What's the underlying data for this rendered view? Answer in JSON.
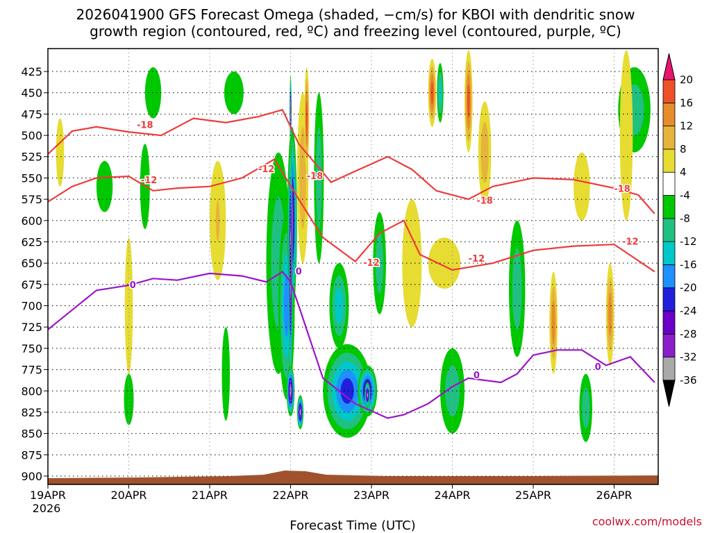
{
  "chart_data": {
    "type": "heatmap",
    "title_line1": "2026041900 GFS Forecast Omega (shaded, −cm/s) for KBOI with dendritic snow",
    "title_line2": "growth region (contoured, red, ºC) and freezing level (contoured, purple, ºC)",
    "xlabel": "Forecast Time (UTC)",
    "credit": "coolwx.com/models",
    "x_ticks": [
      {
        "label": "19APR",
        "sub": "2026",
        "day": 0
      },
      {
        "label": "20APR",
        "sub": "",
        "day": 1
      },
      {
        "label": "21APR",
        "sub": "",
        "day": 2
      },
      {
        "label": "22APR",
        "sub": "",
        "day": 3
      },
      {
        "label": "23APR",
        "sub": "",
        "day": 4
      },
      {
        "label": "24APR",
        "sub": "",
        "day": 5
      },
      {
        "label": "25APR",
        "sub": "",
        "day": 6
      },
      {
        "label": "26APR",
        "sub": "",
        "day": 7
      }
    ],
    "xlim_days": [
      0,
      7.5
    ],
    "y_ticks": [
      425,
      450,
      475,
      500,
      525,
      550,
      575,
      600,
      625,
      650,
      675,
      700,
      725,
      750,
      775,
      800,
      825,
      850,
      875,
      900
    ],
    "ylim_hpa": [
      400,
      905
    ],
    "colorbar": {
      "levels": [
        -36,
        -32,
        -28,
        -24,
        -20,
        -16,
        -12,
        -8,
        -4,
        4,
        8,
        12,
        16,
        20
      ],
      "colors": [
        "#000000",
        "#a9a9a9",
        "#8a1ec9",
        "#6a00c8",
        "#2020dc",
        "#1e90ff",
        "#00c8c8",
        "#20c080",
        "#00c800",
        "#ffffff",
        "#e6dc32",
        "#e6b43c",
        "#e68c28",
        "#f05028",
        "#e8146e"
      ]
    },
    "omega_blobs": [
      {
        "t": 0.15,
        "p": 520,
        "w": 0.05,
        "h": 80,
        "v": 5
      },
      {
        "t": 0.7,
        "p": 560,
        "w": 0.1,
        "h": 60,
        "v": -6
      },
      {
        "t": 1.0,
        "p": 700,
        "w": 0.05,
        "h": 160,
        "v": 4
      },
      {
        "t": 1.2,
        "p": 560,
        "w": 0.06,
        "h": 100,
        "v": -6
      },
      {
        "t": 1.3,
        "p": 450,
        "w": 0.1,
        "h": 60,
        "v": -6
      },
      {
        "t": 1.0,
        "p": 810,
        "w": 0.06,
        "h": 60,
        "v": -7
      },
      {
        "t": 2.1,
        "p": 600,
        "w": 0.1,
        "h": 140,
        "v": 6
      },
      {
        "t": 2.1,
        "p": 600,
        "w": 0.04,
        "h": 80,
        "v": 9
      },
      {
        "t": 2.3,
        "p": 450,
        "w": 0.12,
        "h": 50,
        "v": -6
      },
      {
        "t": 2.2,
        "p": 780,
        "w": 0.05,
        "h": 110,
        "v": -7
      },
      {
        "t": 2.85,
        "p": 650,
        "w": 0.15,
        "h": 260,
        "v": -10
      },
      {
        "t": 2.95,
        "p": 700,
        "w": 0.1,
        "h": 220,
        "v": -16
      },
      {
        "t": 3.02,
        "p": 600,
        "w": 0.06,
        "h": 220,
        "v": -28
      },
      {
        "t": 3.0,
        "p": 650,
        "w": 0.025,
        "h": 300,
        "v": -40
      },
      {
        "t": 3.0,
        "p": 470,
        "w": 0.012,
        "h": 80,
        "v": -40
      },
      {
        "t": 3.0,
        "p": 800,
        "w": 0.05,
        "h": 60,
        "v": -33
      },
      {
        "t": 3.12,
        "p": 825,
        "w": 0.04,
        "h": 40,
        "v": -33
      },
      {
        "t": 3.15,
        "p": 550,
        "w": 0.07,
        "h": 200,
        "v": 8
      },
      {
        "t": 3.2,
        "p": 480,
        "w": 0.03,
        "h": 120,
        "v": 16
      },
      {
        "t": 3.35,
        "p": 550,
        "w": 0.06,
        "h": 200,
        "v": -8
      },
      {
        "t": 3.7,
        "p": 800,
        "w": 0.3,
        "h": 110,
        "v": -20
      },
      {
        "t": 3.95,
        "p": 800,
        "w": 0.12,
        "h": 60,
        "v": -28
      },
      {
        "t": 3.95,
        "p": 805,
        "w": 0.035,
        "h": 30,
        "v": -33
      },
      {
        "t": 3.6,
        "p": 700,
        "w": 0.12,
        "h": 100,
        "v": -12
      },
      {
        "t": 4.1,
        "p": 650,
        "w": 0.08,
        "h": 120,
        "v": -8
      },
      {
        "t": 4.5,
        "p": 650,
        "w": 0.12,
        "h": 150,
        "v": 6
      },
      {
        "t": 4.9,
        "p": 650,
        "w": 0.2,
        "h": 60,
        "v": 6
      },
      {
        "t": 5.0,
        "p": 800,
        "w": 0.15,
        "h": 100,
        "v": -8
      },
      {
        "t": 4.75,
        "p": 450,
        "w": 0.05,
        "h": 80,
        "v": 18
      },
      {
        "t": 4.85,
        "p": 450,
        "w": 0.04,
        "h": 70,
        "v": -12
      },
      {
        "t": 5.2,
        "p": 460,
        "w": 0.05,
        "h": 120,
        "v": 16
      },
      {
        "t": 5.4,
        "p": 520,
        "w": 0.08,
        "h": 120,
        "v": 8
      },
      {
        "t": 5.8,
        "p": 680,
        "w": 0.1,
        "h": 160,
        "v": -8
      },
      {
        "t": 6.25,
        "p": 720,
        "w": 0.05,
        "h": 120,
        "v": 14
      },
      {
        "t": 6.6,
        "p": 560,
        "w": 0.1,
        "h": 80,
        "v": 6
      },
      {
        "t": 6.65,
        "p": 820,
        "w": 0.08,
        "h": 80,
        "v": -8
      },
      {
        "t": 6.95,
        "p": 710,
        "w": 0.05,
        "h": 120,
        "v": 12
      },
      {
        "t": 7.25,
        "p": 470,
        "w": 0.2,
        "h": 100,
        "v": -8
      },
      {
        "t": 7.15,
        "p": 500,
        "w": 0.08,
        "h": 200,
        "v": 6
      }
    ],
    "red_contours": [
      {
        "label": "-18",
        "points": [
          [
            0,
            522
          ],
          [
            0.3,
            495
          ],
          [
            0.6,
            490
          ],
          [
            1.0,
            496
          ],
          [
            1.4,
            500
          ],
          [
            1.6,
            490
          ],
          [
            1.8,
            480
          ],
          [
            2.2,
            485
          ],
          [
            2.6,
            478
          ],
          [
            2.9,
            470
          ],
          [
            3.1,
            510
          ],
          [
            3.5,
            555
          ],
          [
            3.8,
            542
          ],
          [
            4.2,
            525
          ],
          [
            4.5,
            540
          ],
          [
            4.8,
            565
          ],
          [
            5.2,
            575
          ],
          [
            5.5,
            560
          ],
          [
            6.0,
            550
          ],
          [
            6.5,
            552
          ],
          [
            7.0,
            562
          ],
          [
            7.3,
            570
          ],
          [
            7.5,
            592
          ]
        ],
        "labels_at": [
          [
            1.2,
            488
          ],
          [
            3.3,
            548
          ],
          [
            5.4,
            577
          ],
          [
            7.1,
            563
          ]
        ]
      },
      {
        "label": "-12",
        "points": [
          [
            0,
            578
          ],
          [
            0.3,
            560
          ],
          [
            0.6,
            550
          ],
          [
            1.0,
            548
          ],
          [
            1.3,
            565
          ],
          [
            1.6,
            562
          ],
          [
            2.0,
            560
          ],
          [
            2.4,
            550
          ],
          [
            2.8,
            528
          ],
          [
            3.1,
            575
          ],
          [
            3.4,
            620
          ],
          [
            3.8,
            648
          ],
          [
            4.1,
            615
          ],
          [
            4.4,
            600
          ],
          [
            4.6,
            640
          ],
          [
            5.0,
            658
          ],
          [
            5.5,
            650
          ],
          [
            6.0,
            635
          ],
          [
            6.5,
            630
          ],
          [
            7.0,
            628
          ],
          [
            7.5,
            660
          ]
        ],
        "labels_at": [
          [
            1.25,
            553
          ],
          [
            2.7,
            540
          ],
          [
            4.0,
            650
          ],
          [
            5.3,
            645
          ],
          [
            7.2,
            625
          ]
        ]
      }
    ],
    "purple_contours": [
      {
        "label": "0",
        "points": [
          [
            0,
            728
          ],
          [
            0.3,
            705
          ],
          [
            0.6,
            682
          ],
          [
            1.0,
            676
          ],
          [
            1.3,
            668
          ],
          [
            1.6,
            670
          ],
          [
            2.0,
            662
          ],
          [
            2.4,
            665
          ],
          [
            2.7,
            672
          ],
          [
            2.9,
            660
          ],
          [
            3.0,
            672
          ],
          [
            3.1,
            700
          ],
          [
            3.4,
            785
          ],
          [
            3.8,
            815
          ],
          [
            4.2,
            832
          ],
          [
            4.4,
            828
          ],
          [
            4.7,
            815
          ],
          [
            5.0,
            795
          ],
          [
            5.2,
            785
          ],
          [
            5.6,
            790
          ],
          [
            5.8,
            780
          ],
          [
            6.0,
            758
          ],
          [
            6.3,
            752
          ],
          [
            6.6,
            752
          ],
          [
            6.9,
            770
          ],
          [
            7.2,
            760
          ],
          [
            7.5,
            790
          ]
        ],
        "labels_at": [
          [
            1.05,
            676
          ],
          [
            3.1,
            660
          ],
          [
            5.3,
            782
          ],
          [
            6.8,
            772
          ]
        ]
      }
    ]
  }
}
